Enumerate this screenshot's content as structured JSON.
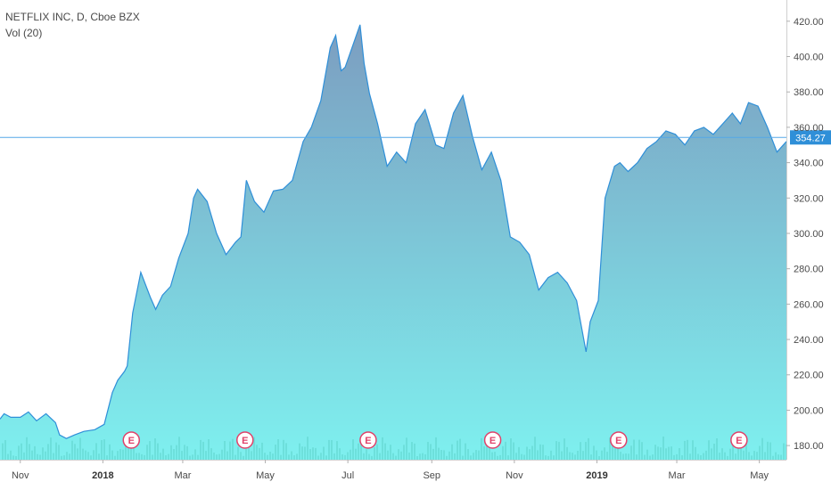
{
  "legend": {
    "title": "NETFLIX INC, D, Cboe BZX",
    "volume": "Vol (20)"
  },
  "colors": {
    "line": "#2f8fd8",
    "fill_top": "#7c9dc0",
    "fill_bottom": "#7ef0ef",
    "volume": "#5fd3cc",
    "price_line": "#55a8e8",
    "price_label_bg": "#2f8fd8",
    "earnings": "#e0426a",
    "axis_text": "#4a4a4a"
  },
  "chart_data": {
    "type": "area",
    "title": "NETFLIX INC, D, Cboe BZX",
    "xlabel": "",
    "ylabel": "",
    "ylim": [
      172,
      432
    ],
    "x_range": [
      "2017-10-17",
      "2019-05-21"
    ],
    "y_ticks": [
      "180.00",
      "200.00",
      "220.00",
      "240.00",
      "260.00",
      "280.00",
      "300.00",
      "320.00",
      "340.00",
      "360.00",
      "380.00",
      "400.00",
      "420.00"
    ],
    "x_ticks": [
      {
        "date": "2017-11-01",
        "label": "Nov",
        "bold": false
      },
      {
        "date": "2018-01-01",
        "label": "2018",
        "bold": true
      },
      {
        "date": "2018-03-01",
        "label": "Mar",
        "bold": false
      },
      {
        "date": "2018-05-01",
        "label": "May",
        "bold": false
      },
      {
        "date": "2018-07-01",
        "label": "Jul",
        "bold": false
      },
      {
        "date": "2018-09-01",
        "label": "Sep",
        "bold": false
      },
      {
        "date": "2018-11-01",
        "label": "Nov",
        "bold": false
      },
      {
        "date": "2019-01-01",
        "label": "2019",
        "bold": true
      },
      {
        "date": "2019-03-01",
        "label": "Mar",
        "bold": false
      },
      {
        "date": "2019-05-01",
        "label": "May",
        "bold": false
      }
    ],
    "last_price": 354.27,
    "last_price_label": "354.27",
    "earnings_marker": "E",
    "earnings_dates": [
      "2018-01-22",
      "2018-04-16",
      "2018-07-16",
      "2018-10-16",
      "2019-01-17",
      "2019-04-16"
    ],
    "series": [
      {
        "values": [
          [
            "2017-10-17",
            195
          ],
          [
            "2017-10-20",
            198
          ],
          [
            "2017-10-25",
            196
          ],
          [
            "2017-11-01",
            196
          ],
          [
            "2017-11-07",
            199
          ],
          [
            "2017-11-13",
            194
          ],
          [
            "2017-11-20",
            198
          ],
          [
            "2017-11-27",
            193
          ],
          [
            "2017-11-30",
            186
          ],
          [
            "2017-12-05",
            184
          ],
          [
            "2017-12-11",
            186
          ],
          [
            "2017-12-18",
            188
          ],
          [
            "2017-12-26",
            189
          ],
          [
            "2018-01-02",
            192
          ],
          [
            "2018-01-08",
            210
          ],
          [
            "2018-01-12",
            217
          ],
          [
            "2018-01-17",
            222
          ],
          [
            "2018-01-19",
            225
          ],
          [
            "2018-01-23",
            255
          ],
          [
            "2018-01-29",
            278
          ],
          [
            "2018-02-05",
            264
          ],
          [
            "2018-02-09",
            257
          ],
          [
            "2018-02-14",
            265
          ],
          [
            "2018-02-20",
            270
          ],
          [
            "2018-02-26",
            286
          ],
          [
            "2018-03-05",
            300
          ],
          [
            "2018-03-09",
            320
          ],
          [
            "2018-03-12",
            325
          ],
          [
            "2018-03-19",
            318
          ],
          [
            "2018-03-26",
            300
          ],
          [
            "2018-04-02",
            288
          ],
          [
            "2018-04-09",
            295
          ],
          [
            "2018-04-13",
            298
          ],
          [
            "2018-04-17",
            330
          ],
          [
            "2018-04-23",
            318
          ],
          [
            "2018-04-30",
            312
          ],
          [
            "2018-05-07",
            324
          ],
          [
            "2018-05-14",
            325
          ],
          [
            "2018-05-21",
            330
          ],
          [
            "2018-05-29",
            352
          ],
          [
            "2018-06-04",
            360
          ],
          [
            "2018-06-11",
            375
          ],
          [
            "2018-06-18",
            405
          ],
          [
            "2018-06-22",
            412
          ],
          [
            "2018-06-26",
            392
          ],
          [
            "2018-06-29",
            394
          ],
          [
            "2018-07-05",
            407
          ],
          [
            "2018-07-10",
            418
          ],
          [
            "2018-07-13",
            396
          ],
          [
            "2018-07-17",
            379
          ],
          [
            "2018-07-23",
            362
          ],
          [
            "2018-07-30",
            338
          ],
          [
            "2018-08-06",
            346
          ],
          [
            "2018-08-13",
            340
          ],
          [
            "2018-08-20",
            362
          ],
          [
            "2018-08-27",
            370
          ],
          [
            "2018-09-04",
            350
          ],
          [
            "2018-09-10",
            348
          ],
          [
            "2018-09-17",
            368
          ],
          [
            "2018-09-24",
            378
          ],
          [
            "2018-10-01",
            355
          ],
          [
            "2018-10-08",
            336
          ],
          [
            "2018-10-15",
            346
          ],
          [
            "2018-10-22",
            330
          ],
          [
            "2018-10-29",
            298
          ],
          [
            "2018-11-05",
            295
          ],
          [
            "2018-11-12",
            288
          ],
          [
            "2018-11-19",
            268
          ],
          [
            "2018-11-26",
            275
          ],
          [
            "2018-12-03",
            278
          ],
          [
            "2018-12-10",
            272
          ],
          [
            "2018-12-17",
            262
          ],
          [
            "2018-12-24",
            233
          ],
          [
            "2018-12-27",
            250
          ],
          [
            "2019-01-02",
            262
          ],
          [
            "2019-01-07",
            320
          ],
          [
            "2019-01-14",
            338
          ],
          [
            "2019-01-18",
            340
          ],
          [
            "2019-01-24",
            335
          ],
          [
            "2019-01-31",
            340
          ],
          [
            "2019-02-07",
            348
          ],
          [
            "2019-02-14",
            352
          ],
          [
            "2019-02-21",
            358
          ],
          [
            "2019-02-28",
            356
          ],
          [
            "2019-03-07",
            350
          ],
          [
            "2019-03-14",
            358
          ],
          [
            "2019-03-21",
            360
          ],
          [
            "2019-03-28",
            356
          ],
          [
            "2019-04-04",
            362
          ],
          [
            "2019-04-11",
            368
          ],
          [
            "2019-04-17",
            362
          ],
          [
            "2019-04-23",
            374
          ],
          [
            "2019-04-30",
            372
          ],
          [
            "2019-05-07",
            360
          ],
          [
            "2019-05-14",
            346
          ],
          [
            "2019-05-21",
            352
          ]
        ]
      }
    ]
  }
}
